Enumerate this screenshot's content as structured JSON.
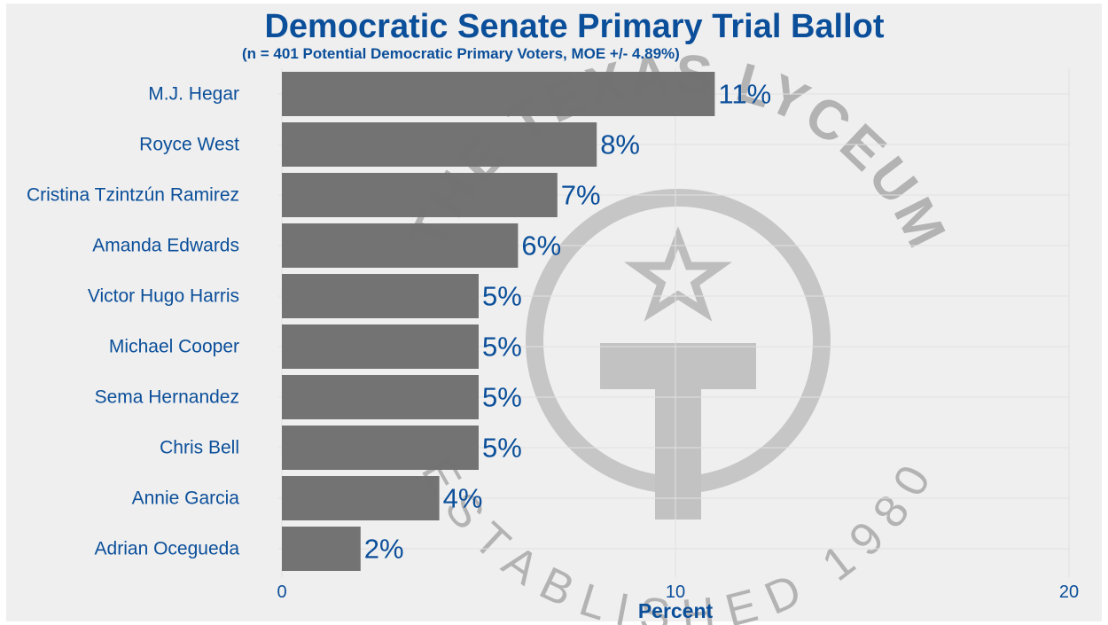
{
  "chart_data": {
    "type": "bar",
    "orientation": "horizontal",
    "title": "Democratic Senate Primary Trial Ballot",
    "subtitle": "(n = 401 Potential Democratic Primary Voters, MOE +/- 4.89%)",
    "xlabel": "Percent",
    "xlim": [
      0,
      20
    ],
    "xticks": [
      0,
      10,
      20
    ],
    "grid": true,
    "categories": [
      "M.J. Hegar",
      "Royce West",
      "Cristina Tzintzún Ramirez",
      "Amanda Edwards",
      "Victor Hugo Harris",
      "Michael Cooper",
      "Sema Hernandez",
      "Chris Bell",
      "Annie Garcia",
      "Adrian Ocegueda"
    ],
    "values": [
      11,
      8,
      7,
      6,
      5,
      5,
      5,
      5,
      4,
      2
    ],
    "data_labels": [
      "11%",
      "8%",
      "7%",
      "6%",
      "5%",
      "5%",
      "5%",
      "5%",
      "4%",
      "2%"
    ],
    "colors": {
      "bar": "#707070",
      "text": "#0b4f9a",
      "background": "#efefef",
      "watermark": "#b3b3b3"
    }
  },
  "watermark": {
    "top_text": "THE TEXAS LYCEUM",
    "bottom_text": "ESTABLISHED 1980",
    "icon": "star-t-seal-icon"
  }
}
